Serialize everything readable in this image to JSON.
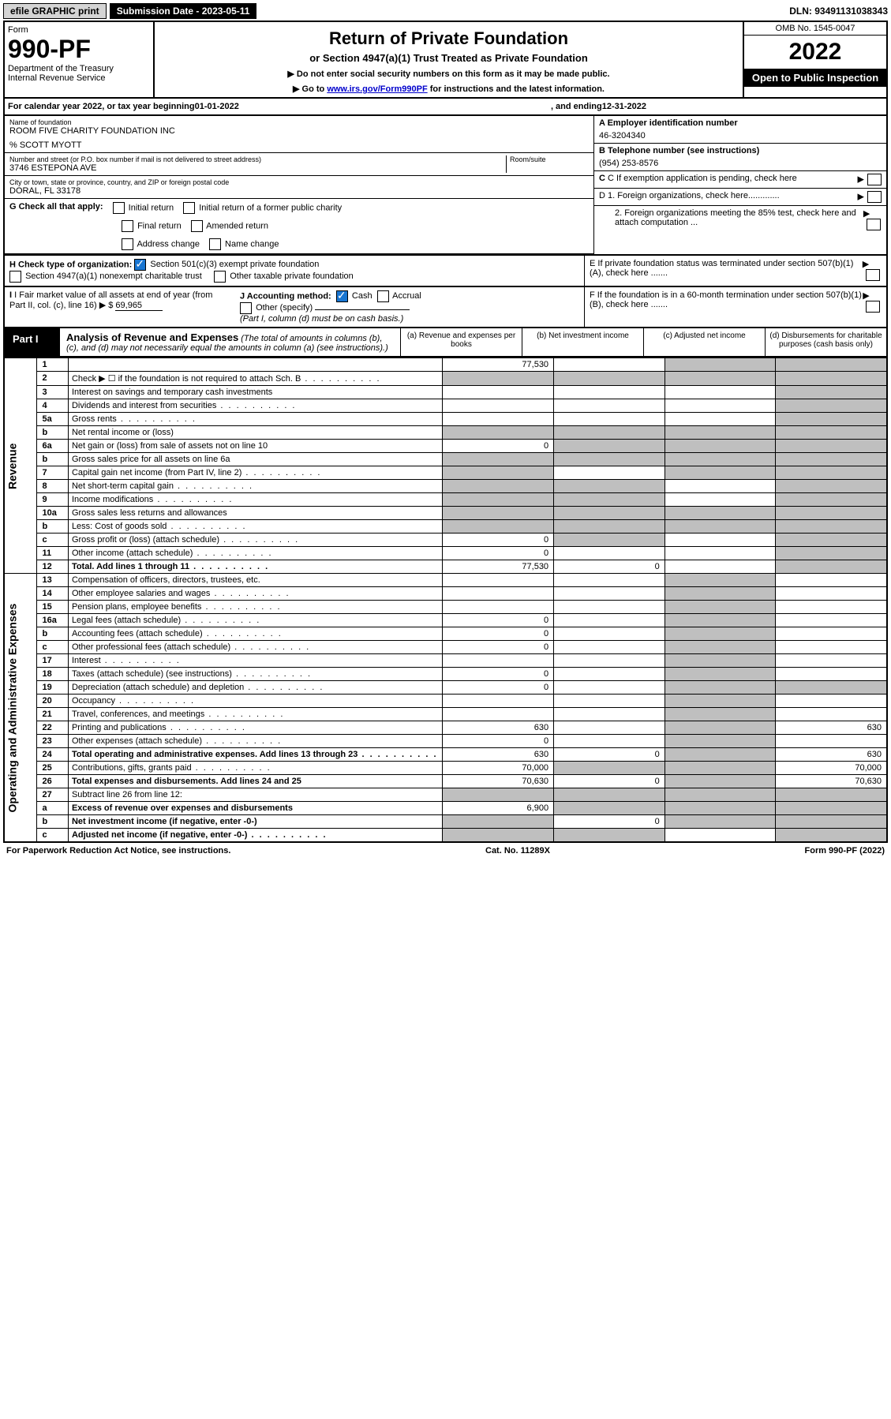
{
  "topbar": {
    "efile": "efile GRAPHIC print",
    "subdate_label": "Submission Date - ",
    "subdate": "2023-05-11",
    "dln": "DLN: 93491131038343"
  },
  "header": {
    "form_label": "Form",
    "form_no": "990-PF",
    "dept1": "Department of the Treasury",
    "dept2": "Internal Revenue Service",
    "title": "Return of Private Foundation",
    "subtitle": "or Section 4947(a)(1) Trust Treated as Private Foundation",
    "note1": "▶ Do not enter social security numbers on this form as it may be made public.",
    "note2_pre": "▶ Go to ",
    "note2_link": "www.irs.gov/Form990PF",
    "note2_post": " for instructions and the latest information.",
    "omb": "OMB No. 1545-0047",
    "year": "2022",
    "open": "Open to Public Inspection"
  },
  "calyear": {
    "pre": "For calendar year 2022, or tax year beginning ",
    "begin": "01-01-2022",
    "mid": " , and ending ",
    "end": "12-31-2022"
  },
  "info": {
    "name_label": "Name of foundation",
    "name": "ROOM FIVE CHARITY FOUNDATION INC",
    "care_of": "% SCOTT MYOTT",
    "addr_label": "Number and street (or P.O. box number if mail is not delivered to street address)",
    "addr": "3746 ESTEPONA AVE",
    "room_label": "Room/suite",
    "city_label": "City or town, state or province, country, and ZIP or foreign postal code",
    "city": "DORAL, FL  33178",
    "ein_label": "A Employer identification number",
    "ein": "46-3204340",
    "phone_label": "B Telephone number (see instructions)",
    "phone": "(954) 253-8576",
    "c_label": "C If exemption application is pending, check here",
    "d1": "D 1. Foreign organizations, check here.............",
    "d2": "2. Foreign organizations meeting the 85% test, check here and attach computation ...",
    "e": "E  If private foundation status was terminated under section 507(b)(1)(A), check here .......",
    "f": "F  If the foundation is in a 60-month termination under section 507(b)(1)(B), check here .......",
    "g_label": "G Check all that apply:",
    "g_opts": [
      "Initial return",
      "Initial return of a former public charity",
      "Final return",
      "Amended return",
      "Address change",
      "Name change"
    ],
    "h_label": "H Check type of organization:",
    "h1": "Section 501(c)(3) exempt private foundation",
    "h2": "Section 4947(a)(1) nonexempt charitable trust",
    "h3": "Other taxable private foundation",
    "i_label": "I Fair market value of all assets at end of year (from Part II, col. (c), line 16)",
    "i_val": "69,965",
    "j_label": "J Accounting method:",
    "j_cash": "Cash",
    "j_accrual": "Accrual",
    "j_other": "Other (specify)",
    "j_note": "(Part I, column (d) must be on cash basis.)"
  },
  "part1": {
    "tag": "Part I",
    "title": "Analysis of Revenue and Expenses",
    "title_note": " (The total of amounts in columns (b), (c), and (d) may not necessarily equal the amounts in column (a) (see instructions).)",
    "col_a": "(a)   Revenue and expenses per books",
    "col_b": "(b)   Net investment income",
    "col_c": "(c)   Adjusted net income",
    "col_d": "(d)   Disbursements for charitable purposes (cash basis only)",
    "side_rev": "Revenue",
    "side_exp": "Operating and Administrative Expenses"
  },
  "rows": [
    {
      "n": "1",
      "d": "",
      "a": "77,530",
      "b": "",
      "c": "",
      "grey_c": true,
      "grey_d": true
    },
    {
      "n": "2",
      "d": "Check ▶ ☐ if the foundation is not required to attach Sch. B",
      "dots": true,
      "grey_all": true
    },
    {
      "n": "3",
      "d": "Interest on savings and temporary cash investments",
      "grey_d": true
    },
    {
      "n": "4",
      "d": "Dividends and interest from securities",
      "dots": true,
      "grey_d": true
    },
    {
      "n": "5a",
      "d": "Gross rents",
      "dots": true,
      "grey_d": true
    },
    {
      "n": "b",
      "d": "Net rental income or (loss)",
      "grey_all": true,
      "inline_box": true
    },
    {
      "n": "6a",
      "d": "Net gain or (loss) from sale of assets not on line 10",
      "a": "0",
      "grey_bcd": true
    },
    {
      "n": "b",
      "d": "Gross sales price for all assets on line 6a",
      "grey_all": true,
      "inline_box": true
    },
    {
      "n": "7",
      "d": "Capital gain net income (from Part IV, line 2)",
      "dots": true,
      "grey_a": true,
      "grey_cd": true
    },
    {
      "n": "8",
      "d": "Net short-term capital gain",
      "dots": true,
      "grey_ab": true,
      "grey_d": true
    },
    {
      "n": "9",
      "d": "Income modifications",
      "dots": true,
      "grey_ab": true,
      "grey_d": true
    },
    {
      "n": "10a",
      "d": "Gross sales less returns and allowances",
      "grey_all": true,
      "inline_box": true
    },
    {
      "n": "b",
      "d": "Less: Cost of goods sold",
      "dots": true,
      "grey_all": true,
      "inline_box": true
    },
    {
      "n": "c",
      "d": "Gross profit or (loss) (attach schedule)",
      "dots": true,
      "a": "0",
      "grey_b": true,
      "grey_d": true
    },
    {
      "n": "11",
      "d": "Other income (attach schedule)",
      "dots": true,
      "a": "0",
      "grey_d": true
    },
    {
      "n": "12",
      "d": "Total. Add lines 1 through 11",
      "dots": true,
      "bold": true,
      "a": "77,530",
      "b": "0",
      "grey_d": true
    }
  ],
  "exp_rows": [
    {
      "n": "13",
      "d": "Compensation of officers, directors, trustees, etc.",
      "grey_c": true
    },
    {
      "n": "14",
      "d": "Other employee salaries and wages",
      "dots": true,
      "grey_c": true
    },
    {
      "n": "15",
      "d": "Pension plans, employee benefits",
      "dots": true,
      "grey_c": true
    },
    {
      "n": "16a",
      "d": "Legal fees (attach schedule)",
      "dots": true,
      "a": "0",
      "grey_c": true
    },
    {
      "n": "b",
      "d": "Accounting fees (attach schedule)",
      "dots": true,
      "a": "0",
      "grey_c": true
    },
    {
      "n": "c",
      "d": "Other professional fees (attach schedule)",
      "dots": true,
      "a": "0",
      "grey_c": true
    },
    {
      "n": "17",
      "d": "Interest",
      "dots": true,
      "grey_c": true
    },
    {
      "n": "18",
      "d": "Taxes (attach schedule) (see instructions)",
      "dots": true,
      "a": "0",
      "grey_c": true
    },
    {
      "n": "19",
      "d": "Depreciation (attach schedule) and depletion",
      "dots": true,
      "a": "0",
      "grey_cd": true
    },
    {
      "n": "20",
      "d": "Occupancy",
      "dots": true,
      "grey_c": true
    },
    {
      "n": "21",
      "d": "Travel, conferences, and meetings",
      "dots": true,
      "grey_c": true
    },
    {
      "n": "22",
      "d": "Printing and publications",
      "dots": true,
      "a": "630",
      "grey_c": true,
      "dd": "630"
    },
    {
      "n": "23",
      "d": "Other expenses (attach schedule)",
      "dots": true,
      "a": "0",
      "grey_c": true
    },
    {
      "n": "24",
      "d": "Total operating and administrative expenses. Add lines 13 through 23",
      "dots": true,
      "bold": true,
      "a": "630",
      "b": "0",
      "grey_c": true,
      "dd": "630"
    },
    {
      "n": "25",
      "d": "Contributions, gifts, grants paid",
      "dots": true,
      "a": "70,000",
      "grey_bc": true,
      "dd": "70,000"
    },
    {
      "n": "26",
      "d": "Total expenses and disbursements. Add lines 24 and 25",
      "bold": true,
      "a": "70,630",
      "b": "0",
      "grey_c": true,
      "dd": "70,630"
    },
    {
      "n": "27",
      "d": "Subtract line 26 from line 12:",
      "grey_all": true
    },
    {
      "n": "a",
      "d": "Excess of revenue over expenses and disbursements",
      "bold": true,
      "a": "6,900",
      "grey_bcd": true
    },
    {
      "n": "b",
      "d": "Net investment income (if negative, enter -0-)",
      "bold": true,
      "grey_a": true,
      "b": "0",
      "grey_cd": true
    },
    {
      "n": "c",
      "d": "Adjusted net income (if negative, enter -0-)",
      "dots": true,
      "bold": true,
      "grey_ab": true,
      "grey_d": true
    }
  ],
  "footer": {
    "left": "For Paperwork Reduction Act Notice, see instructions.",
    "mid": "Cat. No. 11289X",
    "right": "Form 990-PF (2022)"
  }
}
